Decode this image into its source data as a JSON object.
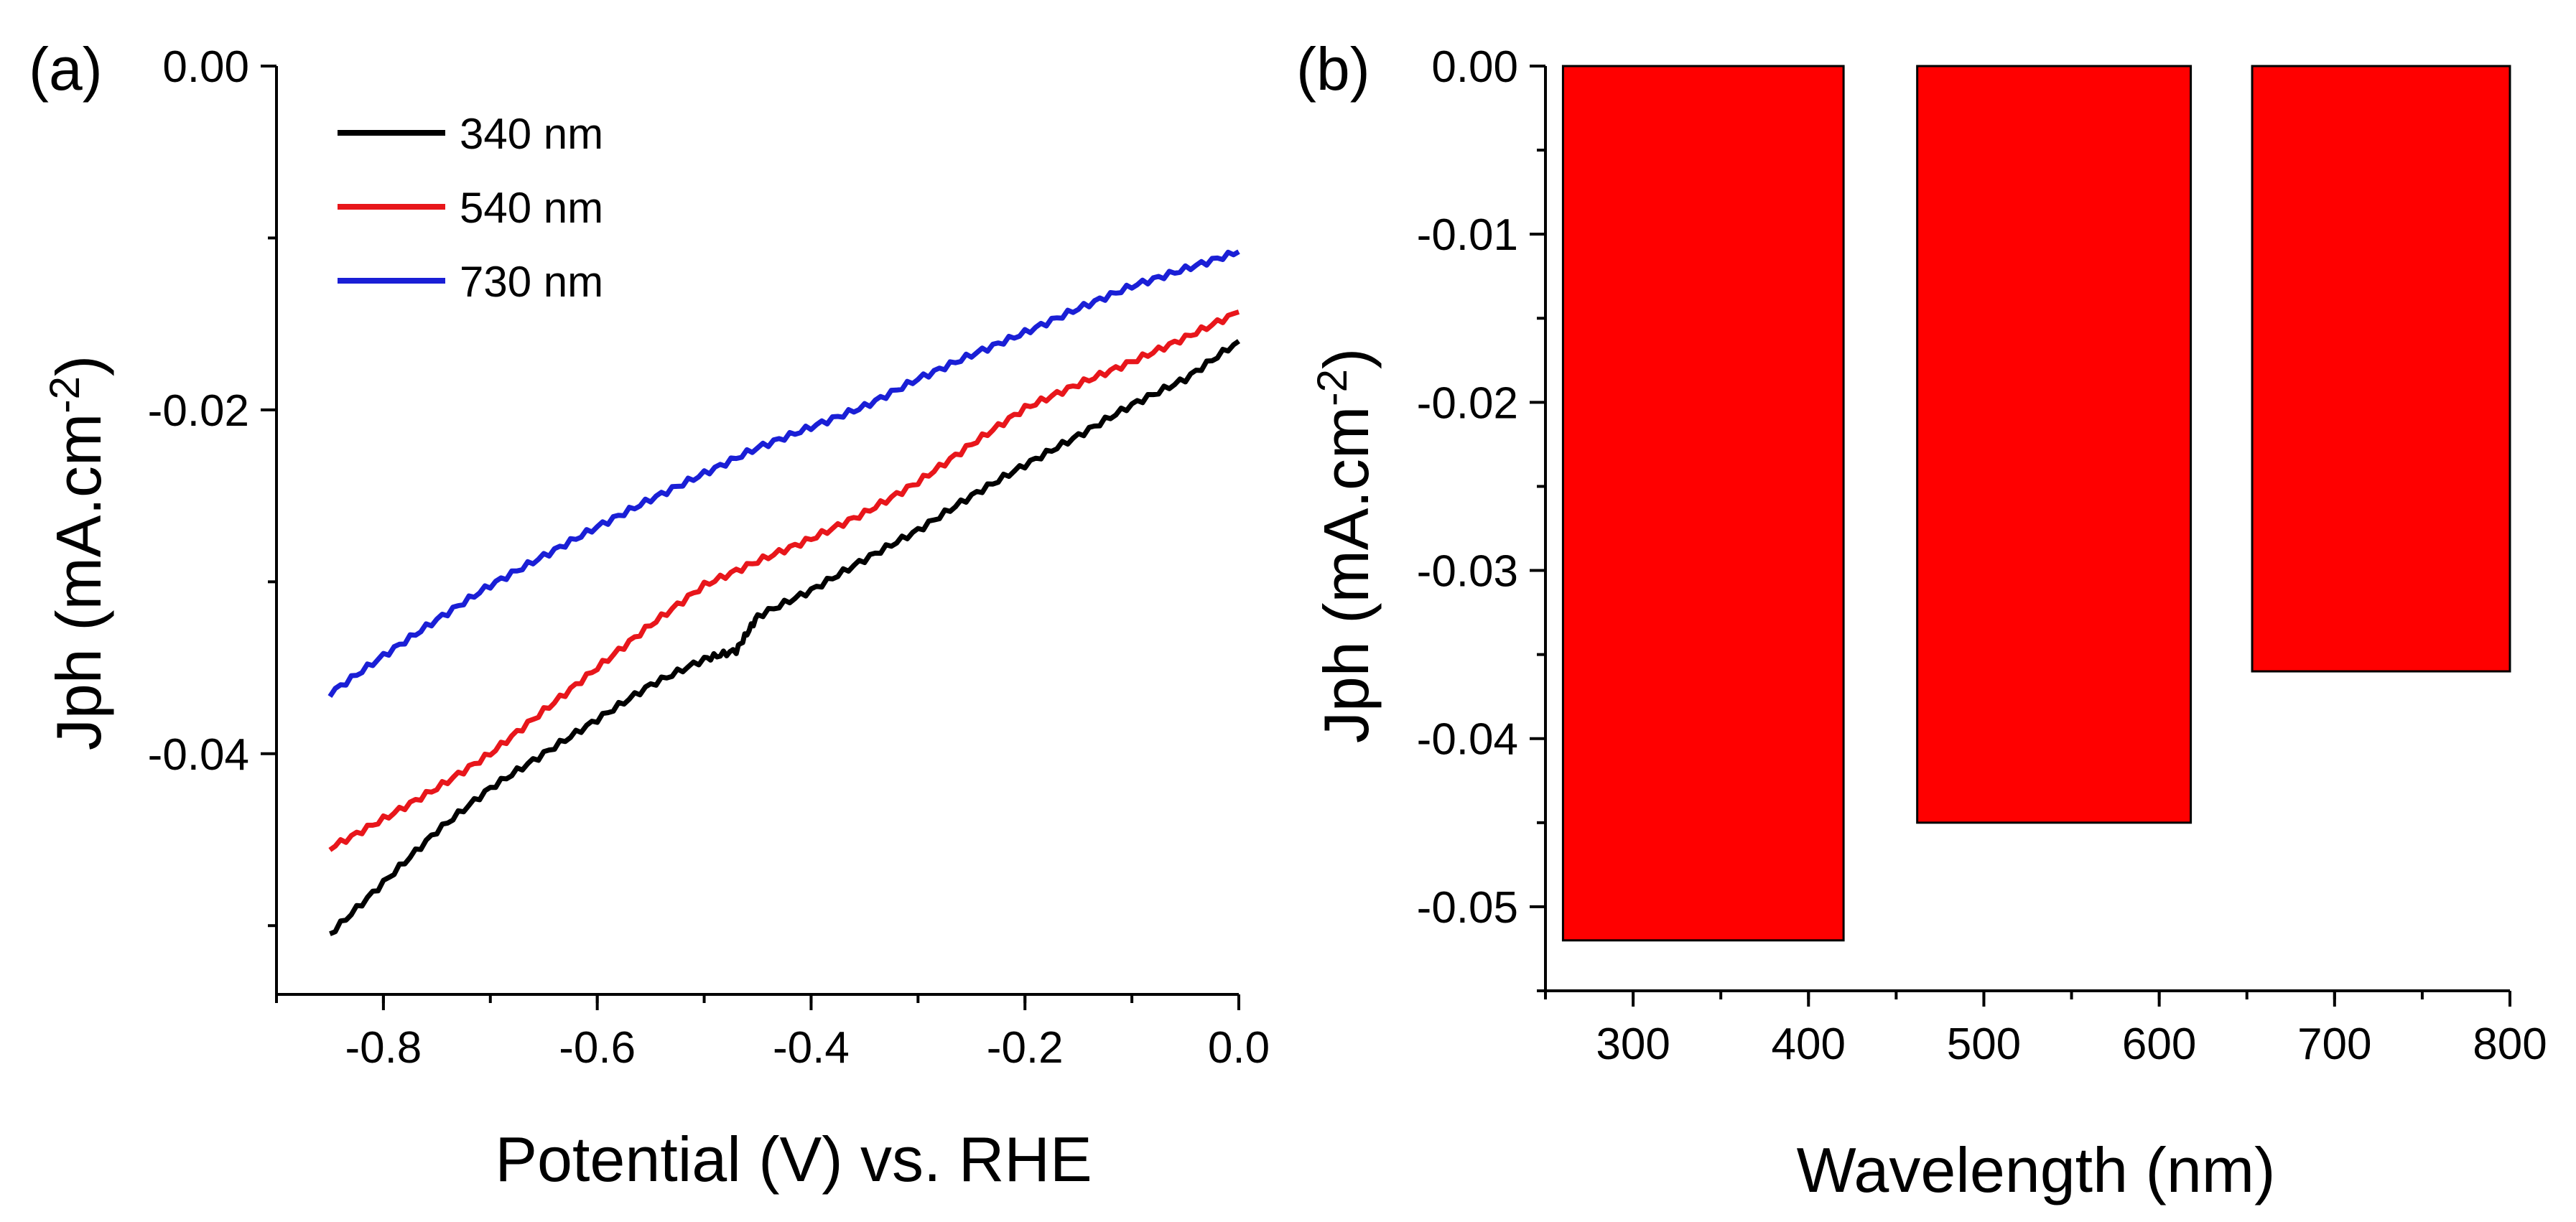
{
  "chart_data": [
    {
      "panel_label": "(a)",
      "type": "line",
      "xlabel": "Potential (V) vs. RHE",
      "ylabel_main": "Jph",
      "ylabel_unit": "(mA.cm",
      "ylabel_sup": "-2",
      "ylabel_close": ")",
      "xlim": [
        -0.9,
        0.0
      ],
      "ylim": [
        -0.054,
        0.0
      ],
      "x_ticks": [
        -0.8,
        -0.6,
        -0.4,
        -0.2,
        0.0
      ],
      "x_tick_labels": [
        "-0.8",
        "-0.6",
        "-0.4",
        "-0.2",
        "0.0"
      ],
      "y_ticks": [
        0.0,
        -0.02,
        -0.04
      ],
      "y_tick_labels": [
        "0.00",
        "-0.02",
        "-0.04"
      ],
      "legend_position": "top-left",
      "series": [
        {
          "name": "340 nm",
          "color": "#000000",
          "x": [
            -0.85,
            -0.8,
            -0.75,
            -0.7,
            -0.65,
            -0.6,
            -0.55,
            -0.5,
            -0.47,
            -0.45,
            -0.4,
            -0.35,
            -0.3,
            -0.25,
            -0.2,
            -0.15,
            -0.1,
            -0.05,
            0.0
          ],
          "y": [
            -0.0505,
            -0.0475,
            -0.0445,
            -0.042,
            -0.04,
            -0.038,
            -0.036,
            -0.0345,
            -0.034,
            -0.032,
            -0.0305,
            -0.0287,
            -0.027,
            -0.025,
            -0.0232,
            -0.0215,
            -0.0197,
            -0.0182,
            -0.016
          ]
        },
        {
          "name": "540 nm",
          "color": "#e8161b",
          "x": [
            -0.85,
            -0.8,
            -0.75,
            -0.7,
            -0.65,
            -0.6,
            -0.55,
            -0.5,
            -0.45,
            -0.4,
            -0.35,
            -0.3,
            -0.25,
            -0.2,
            -0.15,
            -0.1,
            -0.05,
            0.0
          ],
          "y": [
            -0.0455,
            -0.0438,
            -0.042,
            -0.04,
            -0.0375,
            -0.035,
            -0.0325,
            -0.0302,
            -0.0288,
            -0.0275,
            -0.026,
            -0.0242,
            -0.022,
            -0.0199,
            -0.0185,
            -0.0172,
            -0.0158,
            -0.0143
          ]
        },
        {
          "name": "730 nm",
          "color": "#1a1fd6",
          "x": [
            -0.85,
            -0.8,
            -0.75,
            -0.7,
            -0.65,
            -0.6,
            -0.55,
            -0.5,
            -0.45,
            -0.4,
            -0.35,
            -0.3,
            -0.25,
            -0.2,
            -0.15,
            -0.1,
            -0.05,
            0.0
          ],
          "y": [
            -0.0365,
            -0.0343,
            -0.0322,
            -0.0302,
            -0.0285,
            -0.0268,
            -0.0252,
            -0.0237,
            -0.0222,
            -0.021,
            -0.0198,
            -0.0182,
            -0.0168,
            -0.0155,
            -0.0141,
            -0.0128,
            -0.0118,
            -0.0108
          ]
        }
      ]
    },
    {
      "panel_label": "(b)",
      "type": "bar",
      "xlabel": "Wavelength (nm)",
      "ylabel_main": "Jph",
      "ylabel_unit": "(mA.cm",
      "ylabel_sup": "-2",
      "ylabel_close": ")",
      "xlim": [
        250,
        800
      ],
      "ylim": [
        -0.055,
        0.0
      ],
      "x_ticks": [
        300,
        400,
        500,
        600,
        700,
        800
      ],
      "x_tick_labels": [
        "300",
        "400",
        "500",
        "600",
        "700",
        "800"
      ],
      "y_ticks": [
        0.0,
        -0.01,
        -0.02,
        -0.03,
        -0.04,
        -0.05
      ],
      "y_tick_labels": [
        "0.00",
        "-0.01",
        "-0.02",
        "-0.03",
        "-0.04",
        "-0.05"
      ],
      "bar_color": "#ff0000",
      "bars": [
        {
          "x_start": 260,
          "x_end": 420,
          "value": -0.052
        },
        {
          "x_start": 462,
          "x_end": 618,
          "value": -0.045
        },
        {
          "x_start": 653,
          "x_end": 800,
          "value": -0.036
        }
      ]
    }
  ]
}
